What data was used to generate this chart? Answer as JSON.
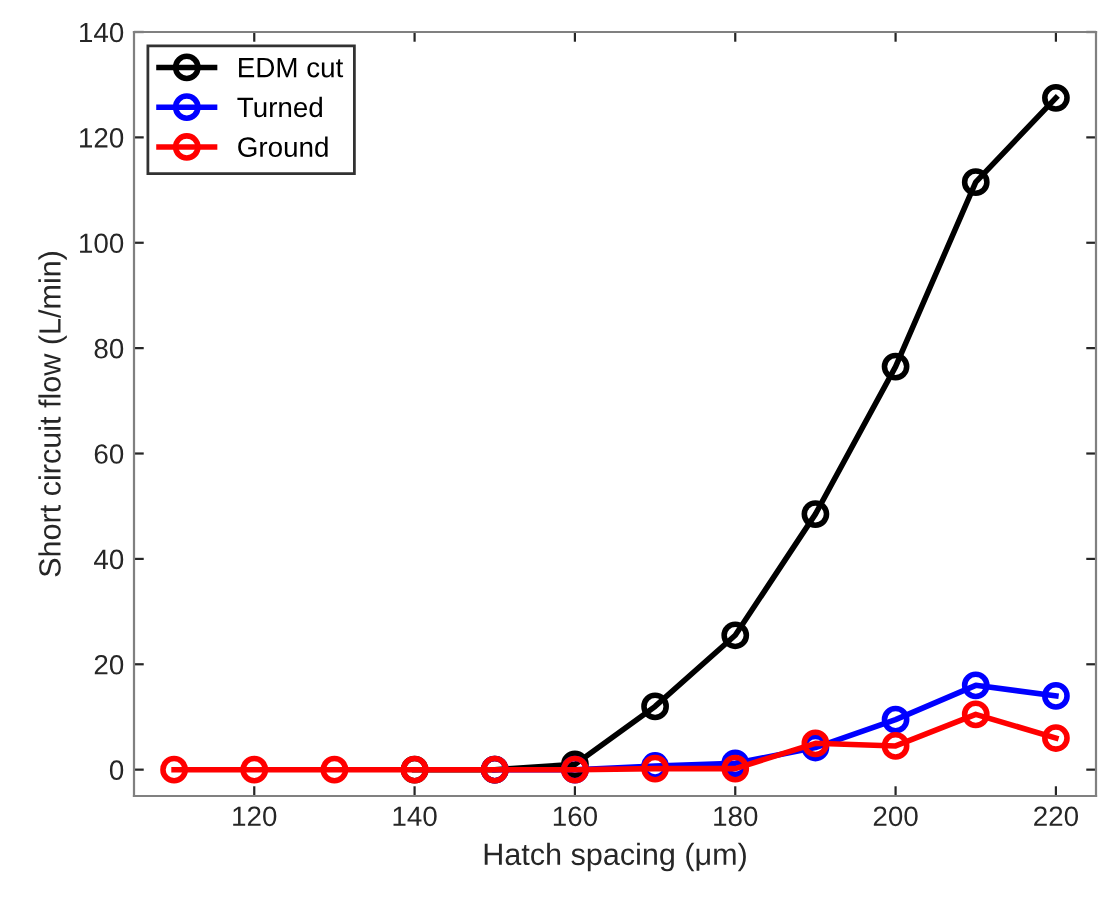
{
  "chart_data": {
    "type": "line",
    "xlabel": "Hatch spacing (μm)",
    "ylabel": "Short circuit flow (L/min)",
    "x": [
      110,
      120,
      130,
      140,
      150,
      160,
      170,
      180,
      190,
      200,
      210,
      220
    ],
    "series": [
      {
        "name": "EDM cut",
        "color": "#000000",
        "values": [
          null,
          null,
          null,
          0,
          0,
          1,
          12,
          25.5,
          48.5,
          76.5,
          111.5,
          127.5
        ]
      },
      {
        "name": "Turned",
        "color": "#0000ff",
        "values": [
          null,
          null,
          null,
          null,
          0,
          0,
          0.7,
          1.2,
          4.2,
          9.5,
          16,
          14
        ]
      },
      {
        "name": "Ground",
        "color": "#ff0000",
        "values": [
          0,
          0,
          0,
          0,
          0,
          0,
          0.2,
          0.2,
          5,
          4.5,
          10.5,
          6
        ]
      }
    ],
    "xlim": [
      105,
      225
    ],
    "ylim": [
      -5,
      140
    ],
    "xticks": [
      120,
      140,
      160,
      180,
      200,
      220
    ],
    "yticks": [
      0,
      20,
      40,
      60,
      80,
      100,
      120,
      140
    ],
    "grid": false,
    "legend": "top left",
    "marker": "circle",
    "line_style": "solid"
  }
}
